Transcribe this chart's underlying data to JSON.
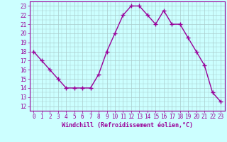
{
  "x": [
    0,
    1,
    2,
    3,
    4,
    5,
    6,
    7,
    8,
    9,
    10,
    11,
    12,
    13,
    14,
    15,
    16,
    17,
    18,
    19,
    20,
    21,
    22,
    23
  ],
  "y": [
    18,
    17,
    16,
    15,
    14,
    14,
    14,
    14,
    15.5,
    18,
    20,
    22,
    23,
    23,
    22,
    21,
    22.5,
    21,
    21,
    19.5,
    18,
    16.5,
    13.5,
    12.5
  ],
  "line_color": "#990099",
  "marker": "+",
  "marker_size": 4,
  "bg_color": "#ccffff",
  "grid_color": "#aacccc",
  "xlabel": "Windchill (Refroidissement éolien,°C)",
  "xlabel_color": "#990099",
  "tick_color": "#990099",
  "spine_color": "#990099",
  "ylim": [
    11.5,
    23.5
  ],
  "xlim": [
    -0.5,
    23.5
  ],
  "yticks": [
    12,
    13,
    14,
    15,
    16,
    17,
    18,
    19,
    20,
    21,
    22,
    23
  ],
  "xticks": [
    0,
    1,
    2,
    3,
    4,
    5,
    6,
    7,
    8,
    9,
    10,
    11,
    12,
    13,
    14,
    15,
    16,
    17,
    18,
    19,
    20,
    21,
    22,
    23
  ],
  "line_width": 1.0,
  "tick_fontsize": 5.5,
  "xlabel_fontsize": 6.0
}
